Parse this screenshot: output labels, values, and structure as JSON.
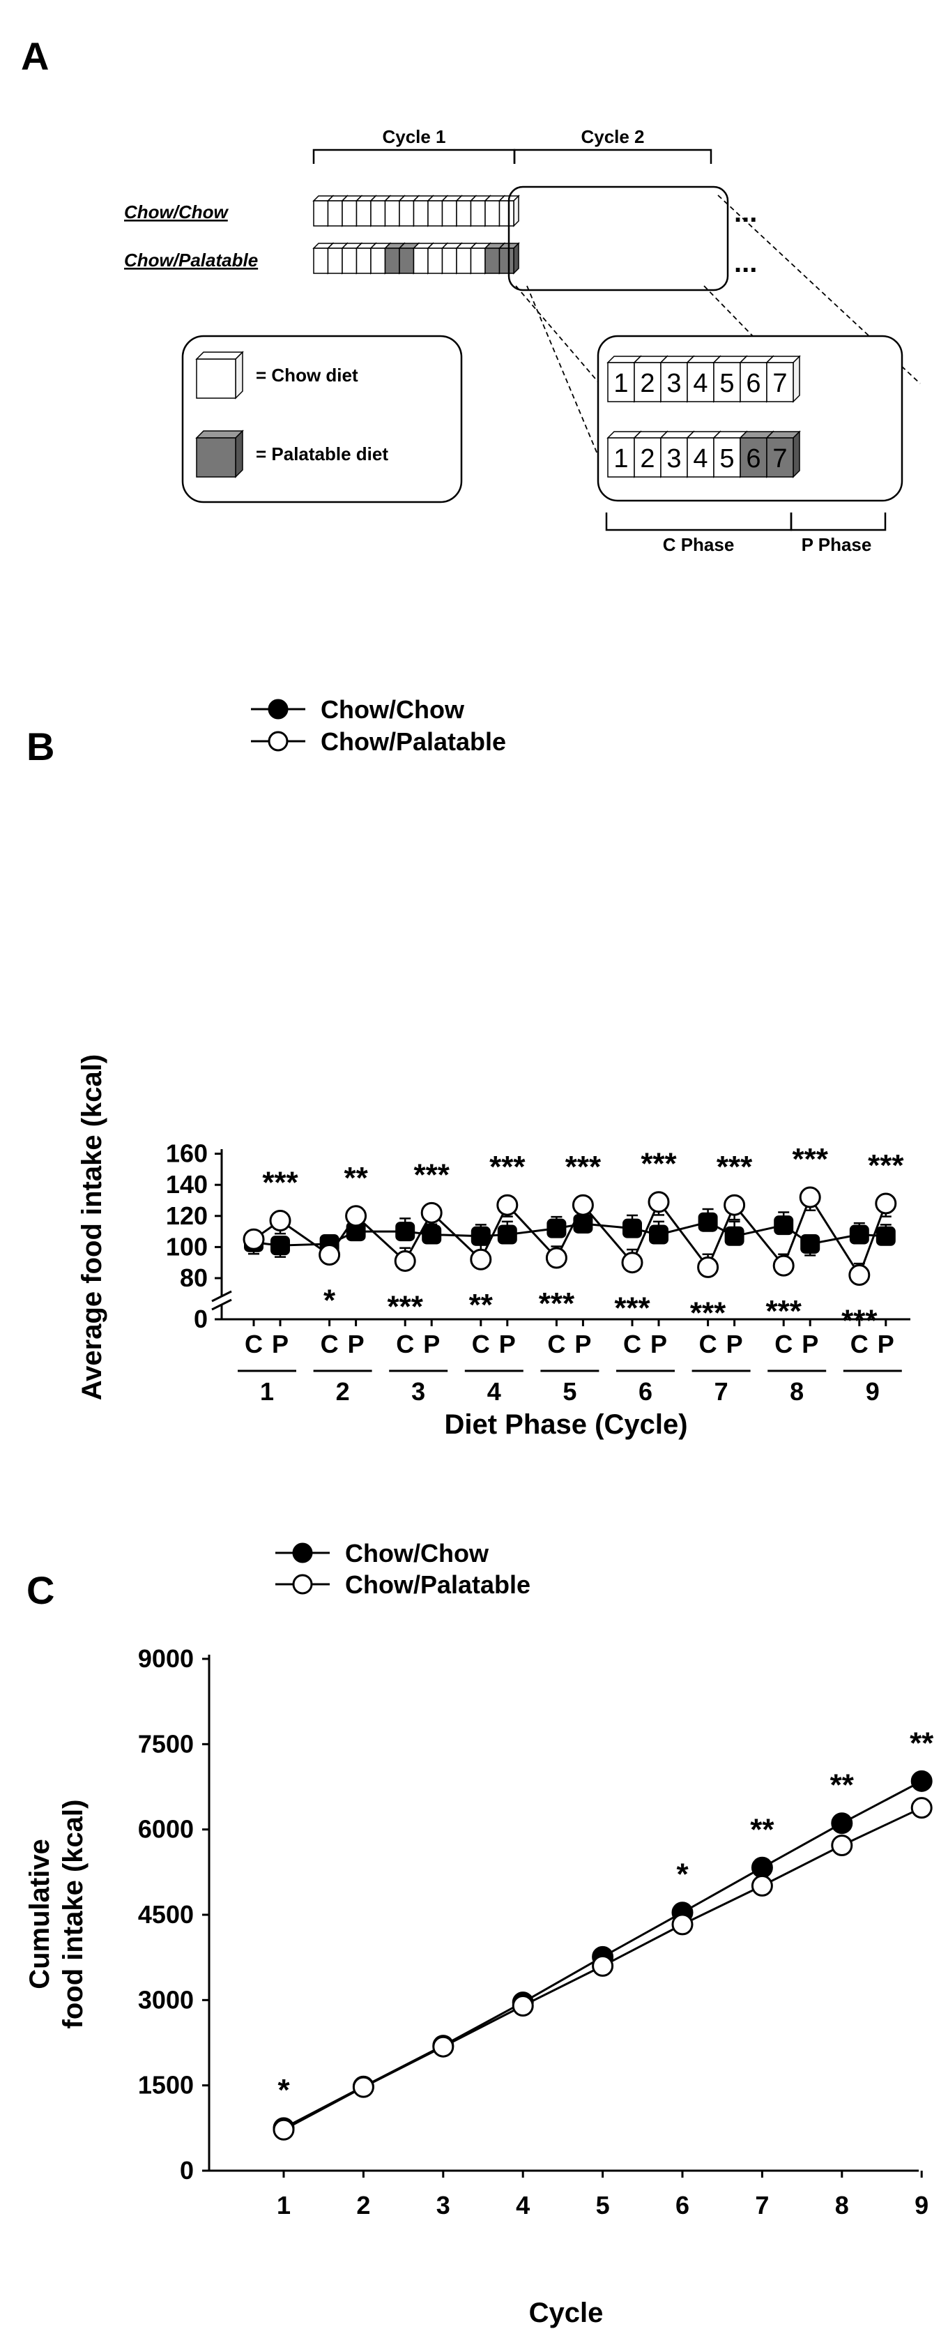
{
  "panels": {
    "a": {
      "letter": "A",
      "cycle1": "Cycle 1",
      "cycle2": "Cycle 2",
      "row1_label": "Chow/Chow",
      "row2_label": "Chow/Palatable",
      "ellipsis": "...",
      "legend_chow": "= Chow diet",
      "legend_palatable": "= Palatable diet",
      "days": [
        "1",
        "2",
        "3",
        "4",
        "5",
        "6",
        "7"
      ],
      "c_phase": "C Phase",
      "p_phase": "P Phase",
      "colors": {
        "chow": "#ffffff",
        "palatable": "#777777"
      }
    },
    "b": {
      "letter": "B"
    },
    "c": {
      "letter": "C"
    }
  },
  "chart_data": [
    {
      "type": "line",
      "panel": "B",
      "legend": [
        "Chow/Chow",
        "Chow/Palatable"
      ],
      "ylabel": "Average food intake (kcal)",
      "xlabel": "Diet Phase (Cycle)",
      "ylim": [
        70,
        160
      ],
      "y_break": true,
      "yticks": [
        "0",
        "80",
        "100",
        "120",
        "140",
        "160"
      ],
      "cycles": [
        "1",
        "2",
        "3",
        "4",
        "5",
        "6",
        "7",
        "8",
        "9"
      ],
      "phase_labels": [
        "C",
        "P"
      ],
      "series": [
        {
          "name": "Chow/Chow",
          "marker": "filled",
          "values": [
            103,
            101,
            102,
            110,
            110,
            108,
            107,
            108,
            112,
            115,
            112,
            108,
            116,
            107,
            114,
            102,
            108,
            107
          ],
          "errors": [
            2,
            2,
            4,
            3,
            3,
            3,
            2,
            3,
            2,
            3,
            3,
            3,
            3,
            4,
            3,
            2,
            2,
            2
          ]
        },
        {
          "name": "Chow/Palatable",
          "marker": "open",
          "values": [
            105,
            117,
            95,
            120,
            91,
            122,
            92,
            127,
            93,
            127,
            90,
            129,
            87,
            127,
            88,
            132,
            82,
            128
          ],
          "errors": [
            2,
            3,
            3,
            3,
            3,
            2,
            4,
            2,
            2,
            2,
            3,
            3,
            3,
            4,
            2,
            3,
            2,
            3
          ]
        }
      ],
      "annotations": [
        {
          "cycle": "1",
          "phase": "P",
          "text": "***",
          "pos": "above"
        },
        {
          "cycle": "2",
          "phase": "P",
          "text": "**",
          "pos": "above"
        },
        {
          "cycle": "2",
          "phase": "C",
          "text": "*",
          "pos": "below"
        },
        {
          "cycle": "3",
          "phase": "P",
          "text": "***",
          "pos": "above"
        },
        {
          "cycle": "3",
          "phase": "C",
          "text": "***",
          "pos": "below"
        },
        {
          "cycle": "4",
          "phase": "P",
          "text": "***",
          "pos": "above"
        },
        {
          "cycle": "4",
          "phase": "C",
          "text": "**",
          "pos": "below"
        },
        {
          "cycle": "5",
          "phase": "P",
          "text": "***",
          "pos": "above"
        },
        {
          "cycle": "5",
          "phase": "C",
          "text": "***",
          "pos": "below"
        },
        {
          "cycle": "6",
          "phase": "P",
          "text": "***",
          "pos": "above"
        },
        {
          "cycle": "6",
          "phase": "C",
          "text": "***",
          "pos": "below"
        },
        {
          "cycle": "7",
          "phase": "P",
          "text": "***",
          "pos": "above"
        },
        {
          "cycle": "7",
          "phase": "C",
          "text": "***",
          "pos": "below"
        },
        {
          "cycle": "8",
          "phase": "P",
          "text": "***",
          "pos": "above"
        },
        {
          "cycle": "8",
          "phase": "C",
          "text": "***",
          "pos": "below"
        },
        {
          "cycle": "9",
          "phase": "P",
          "text": "***",
          "pos": "above"
        },
        {
          "cycle": "9",
          "phase": "C",
          "text": "***",
          "pos": "below"
        }
      ]
    },
    {
      "type": "line",
      "panel": "C",
      "legend": [
        "Chow/Chow",
        "Chow/Palatable"
      ],
      "ylabel": [
        "Cumulative",
        "food intake (kcal)"
      ],
      "xlabel": "Cycle",
      "ylim": [
        0,
        9000
      ],
      "yticks": [
        "0",
        "1500",
        "3000",
        "4500",
        "6000",
        "7500",
        "9000"
      ],
      "x": [
        "1",
        "2",
        "3",
        "4",
        "5",
        "6",
        "7",
        "8",
        "9"
      ],
      "series": [
        {
          "name": "Chow/Chow",
          "marker": "filled",
          "values": [
            750,
            1480,
            2200,
            2960,
            3760,
            4540,
            5330,
            6110,
            6850
          ]
        },
        {
          "name": "Chow/Palatable",
          "marker": "open",
          "values": [
            720,
            1470,
            2180,
            2900,
            3600,
            4330,
            5010,
            5720,
            6380
          ]
        }
      ],
      "annotations": [
        {
          "x": "1",
          "text": "*"
        },
        {
          "x": "6",
          "text": "*"
        },
        {
          "x": "7",
          "text": "**"
        },
        {
          "x": "8",
          "text": "**"
        },
        {
          "x": "9",
          "text": "**"
        }
      ]
    }
  ]
}
